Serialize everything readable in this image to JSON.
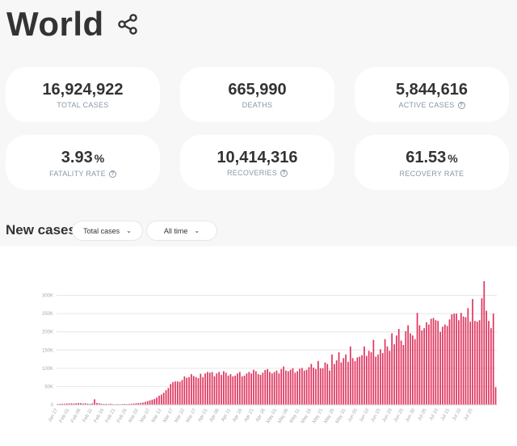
{
  "header": {
    "title": "World"
  },
  "stats": [
    {
      "value": "16,924,922",
      "label": "TOTAL CASES",
      "unit": "",
      "help": false
    },
    {
      "value": "665,990",
      "label": "DEATHS",
      "unit": "",
      "help": false
    },
    {
      "value": "5,844,616",
      "label": "ACTIVE CASES",
      "unit": "",
      "help": true
    },
    {
      "value": "3.93",
      "label": "FATALITY RATE",
      "unit": "%",
      "help": true
    },
    {
      "value": "10,414,316",
      "label": "RECOVERIES",
      "unit": "",
      "help": true
    },
    {
      "value": "61.53",
      "label": "RECOVERY RATE",
      "unit": "%",
      "help": false
    }
  ],
  "section": {
    "title": "New cases",
    "metric_select": "Total cases",
    "range_select": "All time"
  },
  "colors": {
    "bar": "#e0355f",
    "grid": "#e6e6e6",
    "tick": "#aaaaaa"
  },
  "chart_data": {
    "type": "bar",
    "title": "",
    "xlabel": "",
    "ylabel": "",
    "ylim": [
      0,
      350000
    ],
    "yticks": [
      "0",
      "50K",
      "100K",
      "150K",
      "200K",
      "250K",
      "300K"
    ],
    "xticks": [
      "Jan 27",
      "Feb 01",
      "Feb 06",
      "Feb 11",
      "Feb 16",
      "Feb 21",
      "Feb 26",
      "Mar 02",
      "Mar 07",
      "Mar 12",
      "Mar 17",
      "Mar 22",
      "Mar 27",
      "Apr 01",
      "Apr 06",
      "Apr 11",
      "Apr 16",
      "Apr 21",
      "Apr 26",
      "May 01",
      "May 06",
      "May 11",
      "May 16",
      "May 21",
      "May 26",
      "May 31",
      "Jun 05",
      "Jun 10",
      "Jun 15",
      "Jun 20",
      "Jun 25",
      "Jun 30",
      "Jul 05",
      "Jul 10",
      "Jul 15",
      "Jul 20",
      "Jul 25"
    ],
    "values": [
      2000,
      2500,
      3000,
      3000,
      3500,
      3500,
      4000,
      3500,
      4000,
      5000,
      4500,
      3500,
      4000,
      3000,
      2500,
      4000,
      15000,
      5000,
      4000,
      3000,
      2500,
      2500,
      2000,
      3000,
      2000,
      1500,
      2000,
      1500,
      2000,
      2500,
      2000,
      2500,
      3000,
      3500,
      4000,
      4500,
      5000,
      6000,
      8000,
      10000,
      12000,
      14000,
      16000,
      20000,
      25000,
      28000,
      33000,
      40000,
      46000,
      57000,
      62000,
      64000,
      64000,
      63000,
      68000,
      78000,
      74000,
      76000,
      84000,
      79000,
      76000,
      73000,
      85000,
      76000,
      86000,
      90000,
      88000,
      90000,
      78000,
      86000,
      90000,
      82000,
      92000,
      88000,
      80000,
      84000,
      78000,
      80000,
      86000,
      90000,
      78000,
      80000,
      86000,
      90000,
      86000,
      96000,
      92000,
      84000,
      82000,
      88000,
      95000,
      98000,
      90000,
      86000,
      90000,
      94000,
      86000,
      98000,
      105000,
      94000,
      92000,
      96000,
      100000,
      88000,
      92000,
      99000,
      101000,
      94000,
      96000,
      103000,
      112000,
      102000,
      98000,
      120000,
      100000,
      100000,
      116000,
      112000,
      94000,
      138000,
      112000,
      122000,
      144000,
      116000,
      128000,
      138000,
      118000,
      160000,
      128000,
      120000,
      130000,
      132000,
      136000,
      160000,
      134000,
      148000,
      144000,
      178000,
      132000,
      138000,
      152000,
      142000,
      180000,
      160000,
      148000,
      196000,
      166000,
      190000,
      208000,
      176000,
      164000,
      202000,
      218000,
      196000,
      190000,
      180000,
      252000,
      218000,
      204000,
      210000,
      226000,
      220000,
      236000,
      238000,
      232000,
      230000,
      200000,
      214000,
      220000,
      216000,
      234000,
      248000,
      250000,
      250000,
      232000,
      252000,
      242000,
      240000,
      265000,
      228000,
      290000,
      230000,
      228000,
      232000,
      292000,
      339000,
      258000,
      230000,
      210000,
      250000,
      48000
    ]
  }
}
